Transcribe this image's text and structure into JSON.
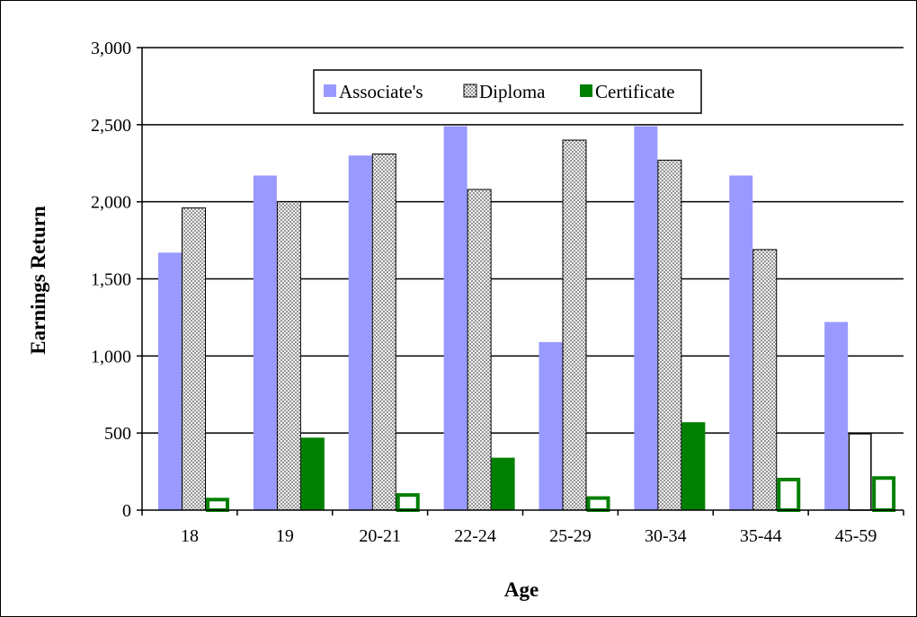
{
  "chart_data": {
    "type": "bar",
    "categories": [
      "18",
      "19",
      "20-21",
      "22-24",
      "25-29",
      "30-34",
      "35-44",
      "45-59"
    ],
    "series": [
      {
        "name": "Associate's",
        "color": "#9999ff",
        "values": [
          1670,
          2170,
          2300,
          2490,
          1090,
          2490,
          2170,
          1220
        ]
      },
      {
        "name": "Diploma",
        "color": "#d9d9d9",
        "values": [
          1960,
          2000,
          2310,
          2080,
          2400,
          2270,
          1690,
          500
        ]
      },
      {
        "name": "Certificate",
        "color": "#008000",
        "values": [
          80,
          470,
          110,
          340,
          90,
          570,
          210,
          220
        ]
      }
    ],
    "hollow_bars": [
      {
        "series": "Diploma",
        "category": "45-59"
      },
      {
        "series": "Certificate",
        "category": "18"
      },
      {
        "series": "Certificate",
        "category": "20-21"
      },
      {
        "series": "Certificate",
        "category": "25-29"
      },
      {
        "series": "Certificate",
        "category": "35-44"
      },
      {
        "series": "Certificate",
        "category": "45-59"
      }
    ],
    "xlabel": "Age",
    "ylabel": "Earnings Return",
    "ylim": [
      0,
      3000
    ],
    "yticks": [
      "0",
      "500",
      "1,000",
      "1,500",
      "2,000",
      "2,500",
      "3,000"
    ],
    "grid": true,
    "legend_position": "top-center"
  }
}
